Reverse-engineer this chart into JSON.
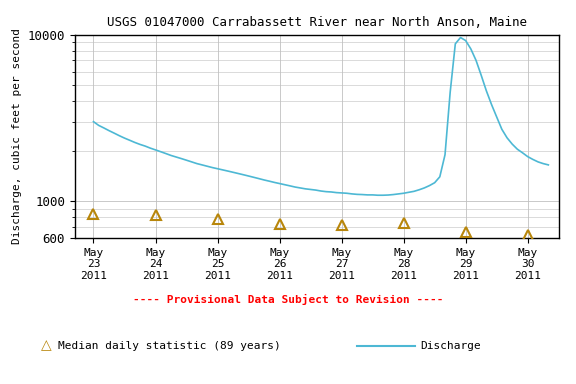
{
  "title": "USGS 01047000 Carrabassett River near North Anson, Maine",
  "ylabel": "Discharge, cubic feet per second",
  "xlim_days": [
    0,
    7.5
  ],
  "ylim": [
    600,
    10000
  ],
  "yticks": [
    600,
    1000,
    10000
  ],
  "background_color": "#ffffff",
  "grid_color": "#c0c0c0",
  "discharge_color": "#4db8d4",
  "median_color": "#b8860b",
  "provisional_color": "#ff0000",
  "x_tick_labels": [
    "May\n23\n2011",
    "May\n24\n2011",
    "May\n25\n2011",
    "May\n26\n2011",
    "May\n27\n2011",
    "May\n28\n2011",
    "May\n29\n2011",
    "May\n30\n2011"
  ],
  "x_tick_positions": [
    0,
    1,
    2,
    3,
    4,
    5,
    6,
    7
  ],
  "discharge_x": [
    0.0,
    0.083,
    0.167,
    0.25,
    0.333,
    0.417,
    0.5,
    0.583,
    0.667,
    0.75,
    0.833,
    0.917,
    1.0,
    1.083,
    1.167,
    1.25,
    1.333,
    1.417,
    1.5,
    1.583,
    1.667,
    1.75,
    1.833,
    1.917,
    2.0,
    2.083,
    2.167,
    2.25,
    2.333,
    2.417,
    2.5,
    2.583,
    2.667,
    2.75,
    2.833,
    2.917,
    3.0,
    3.083,
    3.167,
    3.25,
    3.333,
    3.417,
    3.5,
    3.583,
    3.667,
    3.75,
    3.833,
    3.917,
    4.0,
    4.083,
    4.167,
    4.25,
    4.333,
    4.417,
    4.5,
    4.583,
    4.667,
    4.75,
    4.833,
    4.917,
    5.0,
    5.083,
    5.167,
    5.25,
    5.333,
    5.417,
    5.5,
    5.583,
    5.667,
    5.75,
    5.833,
    5.917,
    6.0,
    6.083,
    6.167,
    6.25,
    6.333,
    6.417,
    6.5,
    6.583,
    6.667,
    6.75,
    6.833,
    6.917,
    7.0,
    7.083,
    7.167,
    7.25,
    7.333
  ],
  "discharge_y": [
    3000,
    2850,
    2750,
    2650,
    2560,
    2470,
    2390,
    2320,
    2250,
    2190,
    2140,
    2080,
    2030,
    1980,
    1930,
    1880,
    1840,
    1800,
    1760,
    1720,
    1680,
    1650,
    1620,
    1590,
    1565,
    1540,
    1515,
    1490,
    1465,
    1440,
    1415,
    1390,
    1365,
    1340,
    1318,
    1295,
    1275,
    1255,
    1235,
    1215,
    1200,
    1185,
    1175,
    1165,
    1150,
    1140,
    1135,
    1125,
    1120,
    1115,
    1105,
    1098,
    1095,
    1090,
    1090,
    1085,
    1085,
    1088,
    1095,
    1105,
    1115,
    1130,
    1145,
    1170,
    1200,
    1240,
    1290,
    1400,
    1900,
    4500,
    8800,
    9600,
    9200,
    8200,
    7000,
    5700,
    4600,
    3800,
    3200,
    2700,
    2400,
    2200,
    2050,
    1950,
    1850,
    1780,
    1720,
    1680,
    1650
  ],
  "median_x": [
    0,
    1,
    2,
    3,
    4,
    5,
    6,
    7
  ],
  "median_y": [
    840,
    820,
    780,
    730,
    720,
    740,
    650,
    625
  ],
  "legend_provisional_text": "---- Provisional Data Subject to Revision ----",
  "legend_median_text": "Median daily statistic (89 years)",
  "legend_discharge_text": "Discharge",
  "font_family": "monospace"
}
